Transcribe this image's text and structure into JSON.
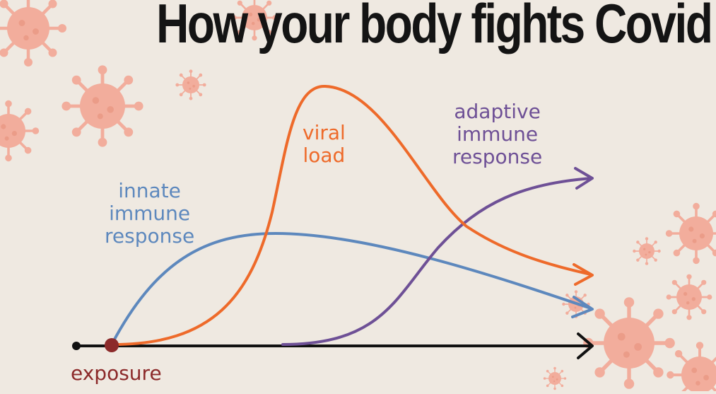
{
  "title": "How your body fights Covid",
  "labels": {
    "viral_load": [
      "viral",
      "load"
    ],
    "adaptive": [
      "adaptive",
      "immune",
      "response"
    ],
    "innate": [
      "innate",
      "immune",
      "response"
    ],
    "exposure": "exposure"
  },
  "colors": {
    "background": "#efe9e1",
    "viral": "#ee6a2a",
    "adaptive": "#6e5096",
    "innate": "#5d88bd",
    "axis": "#111111",
    "exposure": "#8c2a2a",
    "virus_pink": "#f2a28f"
  },
  "icons": [
    "coronavirus-icon"
  ]
}
